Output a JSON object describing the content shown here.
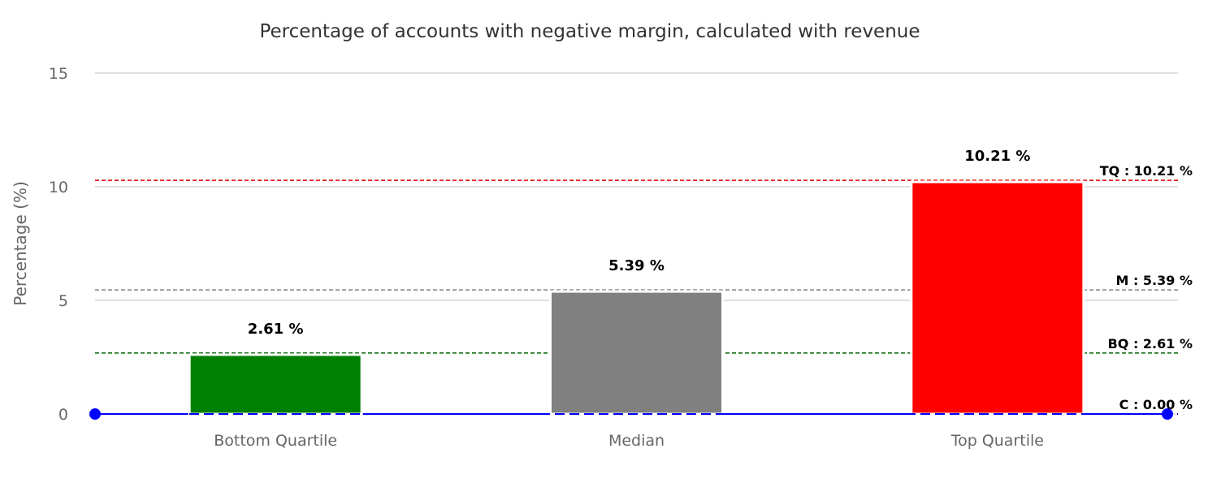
{
  "chart_data": {
    "type": "bar",
    "title": "Percentage of accounts with negative margin, calculated with revenue",
    "xlabel": "",
    "ylabel": "Percentage (%)",
    "ylim": [
      0,
      15
    ],
    "yticks": [
      "0",
      "5",
      "10",
      "15"
    ],
    "grid": true,
    "categories": [
      "Bottom Quartile",
      "Median",
      "Top Quartile"
    ],
    "values": [
      2.61,
      5.39,
      10.21
    ],
    "data_labels": [
      "2.61 %",
      "5.39 %",
      "10.21 %"
    ],
    "bar_colors": [
      "#008000",
      "#808080",
      "#ff0000"
    ],
    "reference_lines": [
      {
        "label": "TQ : 10.21 %",
        "value": 10.21,
        "color": "#e00000",
        "style": "dashed"
      },
      {
        "label": "M : 5.39 %",
        "value": 5.39,
        "color": "#808080",
        "style": "dashed"
      },
      {
        "label": "BQ : 2.61 %",
        "value": 2.61,
        "color": "#006400",
        "style": "dashed"
      },
      {
        "label": "C : 0.00 %",
        "value": 0.0,
        "color": "#0000ff",
        "style": "dashed",
        "end_markers": true
      }
    ]
  }
}
